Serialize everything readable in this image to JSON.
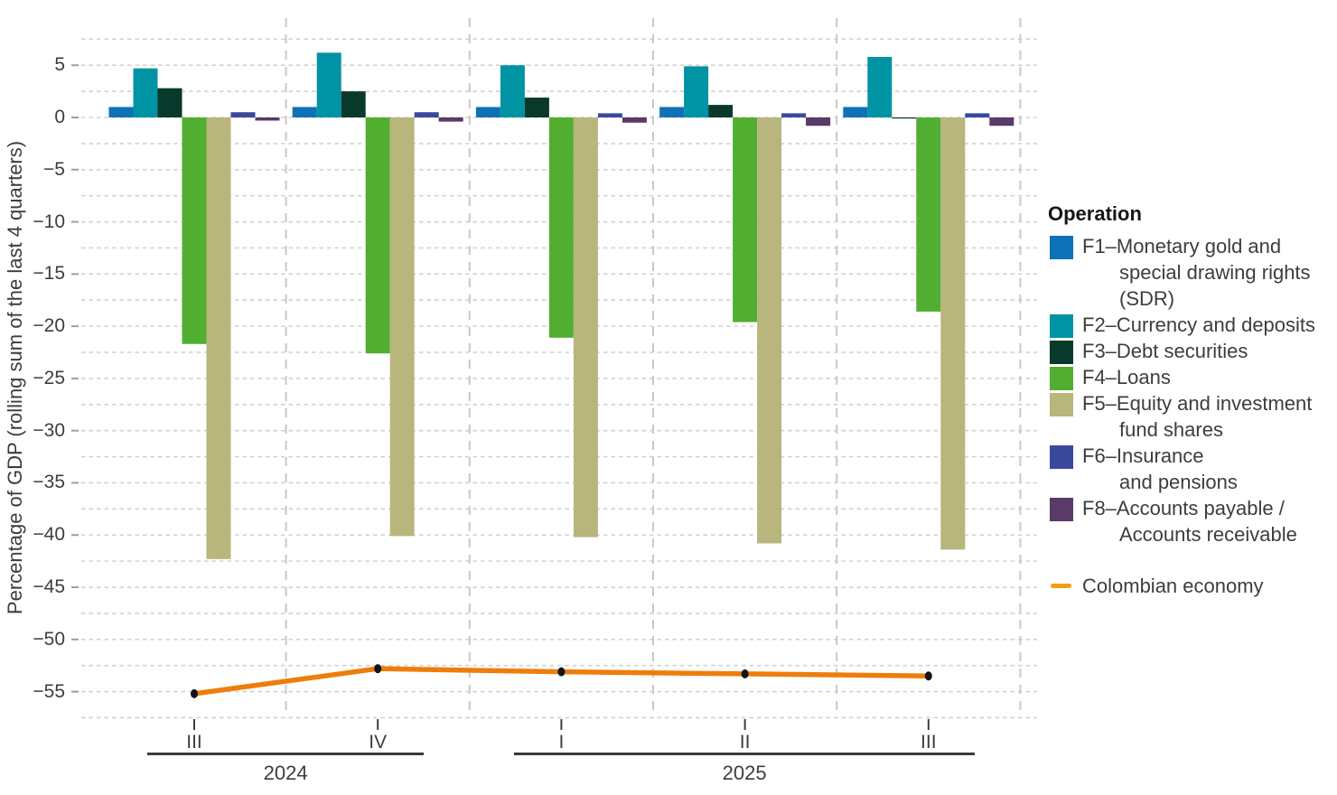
{
  "y_axis": {
    "title": "Percentage of GDP (rolling sum of the last 4 quarters)",
    "ticks": [
      {
        "v": 5,
        "label": "5"
      },
      {
        "v": 0,
        "label": "0"
      },
      {
        "v": -5,
        "label": "−5"
      },
      {
        "v": -10,
        "label": "−10"
      },
      {
        "v": -15,
        "label": "−15"
      },
      {
        "v": -20,
        "label": "−20"
      },
      {
        "v": -25,
        "label": "−25"
      },
      {
        "v": -30,
        "label": "−30"
      },
      {
        "v": -35,
        "label": "−35"
      },
      {
        "v": -40,
        "label": "−40"
      },
      {
        "v": -45,
        "label": "−45"
      },
      {
        "v": -50,
        "label": "−50"
      },
      {
        "v": -55,
        "label": "−55"
      }
    ],
    "minor_step": 2.5
  },
  "x_axis": {
    "quarters": [
      "III",
      "IV",
      "I",
      "II",
      "III"
    ],
    "year_groups": [
      {
        "label": "2024",
        "from": 0,
        "to": 1
      },
      {
        "label": "2025",
        "from": 2,
        "to": 4
      }
    ]
  },
  "legend": {
    "title": "Operation",
    "items": [
      {
        "series_index": 0,
        "lines": [
          "F1–Monetary gold and",
          "special drawing rights",
          "(SDR)"
        ]
      },
      {
        "series_index": 1,
        "lines": [
          "F2–Currency and deposits"
        ]
      },
      {
        "series_index": 2,
        "lines": [
          "F3–Debt securities"
        ]
      },
      {
        "series_index": 3,
        "lines": [
          "F4–Loans"
        ]
      },
      {
        "series_index": 4,
        "lines": [
          "F5–Equity and investment",
          "fund shares"
        ]
      },
      {
        "series_index": 5,
        "lines": [
          "F6–Insurance",
          "and pensions"
        ]
      },
      {
        "series_index": 6,
        "lines": [
          "F8–Accounts payable /",
          "Accounts receivable"
        ]
      }
    ],
    "line_item": {
      "label": "Colombian economy",
      "swatch_color": "#f59d15"
    }
  },
  "chart_data": {
    "type": "bar",
    "title": "",
    "xlabel": "",
    "ylabel": "Percentage of GDP (rolling sum of the last 4 quarters)",
    "ylim": [
      -57.5,
      7.5
    ],
    "grid": true,
    "legend_position": "right",
    "categories": [
      "III 2024",
      "IV 2024",
      "I 2025",
      "II 2025",
      "III 2025"
    ],
    "series": [
      {
        "id": "F1",
        "name": "F1–Monetary gold and special drawing rights (SDR)",
        "color": "#0f71b6",
        "values": [
          1.0,
          1.0,
          1.0,
          1.0,
          1.0
        ]
      },
      {
        "id": "F2",
        "name": "F2–Currency and deposits",
        "color": "#0093a3",
        "values": [
          4.7,
          6.2,
          5.0,
          4.9,
          5.8
        ]
      },
      {
        "id": "F3",
        "name": "F3–Debt securities",
        "color": "#09392a",
        "values": [
          2.8,
          2.5,
          1.9,
          1.2,
          -0.1
        ]
      },
      {
        "id": "F4",
        "name": "F4–Loans",
        "color": "#52ae31",
        "values": [
          -21.7,
          -22.6,
          -21.1,
          -19.6,
          -18.6
        ]
      },
      {
        "id": "F5",
        "name": "F5–Equity and investment fund shares",
        "color": "#b8b57d",
        "values": [
          -42.3,
          -40.1,
          -40.2,
          -40.8,
          -41.4
        ]
      },
      {
        "id": "F6",
        "name": "F6–Insurance and pensions",
        "color": "#3b489c",
        "values": [
          0.5,
          0.5,
          0.4,
          0.4,
          0.4
        ]
      },
      {
        "id": "F8",
        "name": "F8–Accounts payable / Accounts receivable",
        "color": "#593a68",
        "values": [
          -0.3,
          -0.4,
          -0.5,
          -0.8,
          -0.8
        ]
      }
    ],
    "line_series": {
      "name": "Colombian economy",
      "color": "#ee7d0c",
      "marker_color": "#141414",
      "values": [
        -55.2,
        -52.8,
        -53.1,
        -53.3,
        -53.5
      ]
    },
    "style": {
      "h_grid_color": "#d2d2d2",
      "v_grid_color": "#c8c8c8",
      "y_tick_mark_color": "#9e9e9e",
      "x_tick_mark_color": "#3f3f3f",
      "axis_text_color": "#3d3d3d"
    }
  }
}
